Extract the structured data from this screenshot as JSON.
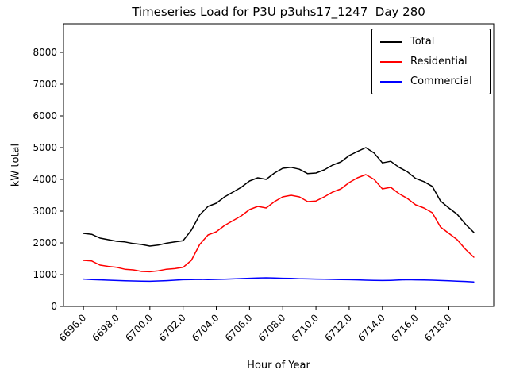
{
  "chart_data": {
    "type": "line",
    "title": "Timeseries Load for P3U p3uhs17_1247  Day 280",
    "xlabel": "Hour of Year",
    "ylabel": "kW total",
    "xlim": [
      6694.8,
      6720.7
    ],
    "ylim": [
      0,
      8900
    ],
    "grid": false,
    "legend_position": "upper right",
    "x_ticks": [
      6696,
      6698,
      6700,
      6702,
      6704,
      6706,
      6708,
      6710,
      6712,
      6714,
      6716,
      6718
    ],
    "x_tick_labels": [
      "6696.0",
      "6698.0",
      "6700.0",
      "6702.0",
      "6704.0",
      "6706.0",
      "6708.0",
      "6710.0",
      "6712.0",
      "6714.0",
      "6716.0",
      "6718.0"
    ],
    "y_ticks": [
      0,
      1000,
      2000,
      3000,
      4000,
      5000,
      6000,
      7000,
      8000
    ],
    "y_tick_labels": [
      "0",
      "1000",
      "2000",
      "3000",
      "4000",
      "5000",
      "6000",
      "7000",
      "8000"
    ],
    "x": [
      6696.0,
      6696.5,
      6697.0,
      6697.5,
      6698.0,
      6698.5,
      6699.0,
      6699.5,
      6700.0,
      6700.5,
      6701.0,
      6701.5,
      6702.0,
      6702.5,
      6703.0,
      6703.5,
      6704.0,
      6704.5,
      6705.0,
      6705.5,
      6706.0,
      6706.5,
      6707.0,
      6707.5,
      6708.0,
      6708.5,
      6709.0,
      6709.5,
      6710.0,
      6710.5,
      6711.0,
      6711.5,
      6712.0,
      6712.5,
      6713.0,
      6713.5,
      6714.0,
      6714.5,
      6715.0,
      6715.5,
      6716.0,
      6716.5,
      6717.0,
      6717.5,
      6718.0,
      6718.5,
      6719.0,
      6719.5
    ],
    "series": [
      {
        "name": "Total",
        "color": "#000000",
        "values": [
          2300,
          2270,
          2150,
          2100,
          2050,
          2030,
          1980,
          1950,
          1900,
          1930,
          1990,
          2030,
          2070,
          2400,
          2880,
          3150,
          3250,
          3450,
          3600,
          3750,
          3950,
          4050,
          4000,
          4200,
          4350,
          4380,
          4320,
          4180,
          4200,
          4300,
          4450,
          4550,
          4750,
          4880,
          5000,
          4830,
          4520,
          4570,
          4380,
          4240,
          4030,
          3930,
          3780,
          3320,
          3100,
          2900,
          2590,
          2330
        ]
      },
      {
        "name": "Residential",
        "color": "#ff0000",
        "values": [
          1450,
          1430,
          1300,
          1260,
          1230,
          1170,
          1150,
          1100,
          1090,
          1120,
          1170,
          1190,
          1230,
          1450,
          1950,
          2250,
          2350,
          2550,
          2700,
          2850,
          3050,
          3150,
          3100,
          3300,
          3450,
          3500,
          3450,
          3300,
          3320,
          3450,
          3600,
          3700,
          3900,
          4050,
          4150,
          4000,
          3700,
          3750,
          3550,
          3400,
          3200,
          3100,
          2950,
          2500,
          2300,
          2100,
          1800,
          1550
        ]
      },
      {
        "name": "Commercial",
        "color": "#0000ff",
        "values": [
          860,
          845,
          835,
          825,
          815,
          805,
          800,
          795,
          790,
          800,
          810,
          825,
          840,
          845,
          850,
          845,
          850,
          855,
          865,
          875,
          885,
          895,
          900,
          895,
          885,
          880,
          870,
          865,
          860,
          855,
          850,
          845,
          840,
          835,
          825,
          820,
          815,
          820,
          830,
          840,
          835,
          830,
          825,
          815,
          805,
          795,
          785,
          770
        ]
      }
    ]
  }
}
